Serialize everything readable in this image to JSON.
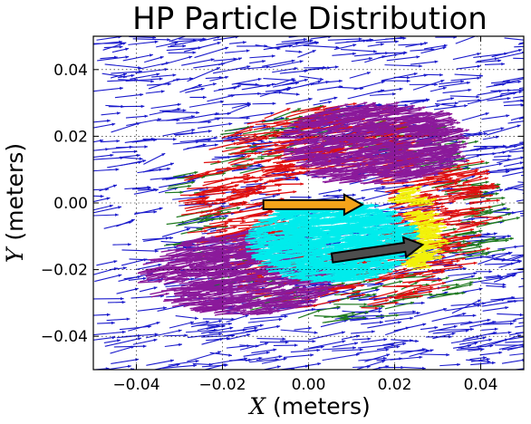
{
  "chart_data": {
    "type": "quiver",
    "title": "HP Particle Distribution",
    "xlabel_var": "X",
    "xlabel_unit": " (meters)",
    "ylabel_var": "Y",
    "ylabel_unit": " (meters)",
    "xlim": [
      -0.05,
      0.05
    ],
    "ylim": [
      -0.05,
      0.05
    ],
    "xticks": [
      -0.04,
      -0.02,
      0.0,
      0.02,
      0.04
    ],
    "xtick_labels": [
      "−0.04",
      "−0.02",
      "0.00",
      "0.02",
      "0.04"
    ],
    "yticks": [
      0.04,
      0.02,
      0.0,
      -0.02,
      -0.04
    ],
    "ytick_labels": [
      "0.04",
      "0.02",
      "0.00",
      "−0.02",
      "−0.04"
    ],
    "grid": true,
    "colors": {
      "outer": "#1a1acc",
      "mid_green": "#1f7a1f",
      "mid_red": "#e01010",
      "inner_purple": "#8b1a9b",
      "core": "#00ecec",
      "edge_yellow": "#f2f20a"
    },
    "regions": [
      {
        "name": "core",
        "color": "#00ecec",
        "center": [
          0.003,
          -0.012
        ],
        "radius": [
          0.018,
          0.012
        ]
      },
      {
        "name": "purple-lower-left",
        "color": "#8b1a9b",
        "center": [
          -0.018,
          -0.022
        ],
        "radius": [
          0.022,
          0.012
        ]
      },
      {
        "name": "purple-upper",
        "color": "#8b1a9b",
        "center": [
          0.012,
          0.017
        ],
        "radius": [
          0.02,
          0.012
        ]
      }
    ],
    "highlight_arrows": [
      {
        "name": "orange-arrow",
        "color": "#f5a31a",
        "from": [
          -0.0105,
          -0.0005
        ],
        "to": [
          0.0125,
          -0.0005
        ]
      },
      {
        "name": "gray-arrow",
        "color": "#4d4d4d",
        "from": [
          0.0055,
          -0.0165
        ],
        "to": [
          0.0265,
          -0.0125
        ]
      }
    ]
  }
}
